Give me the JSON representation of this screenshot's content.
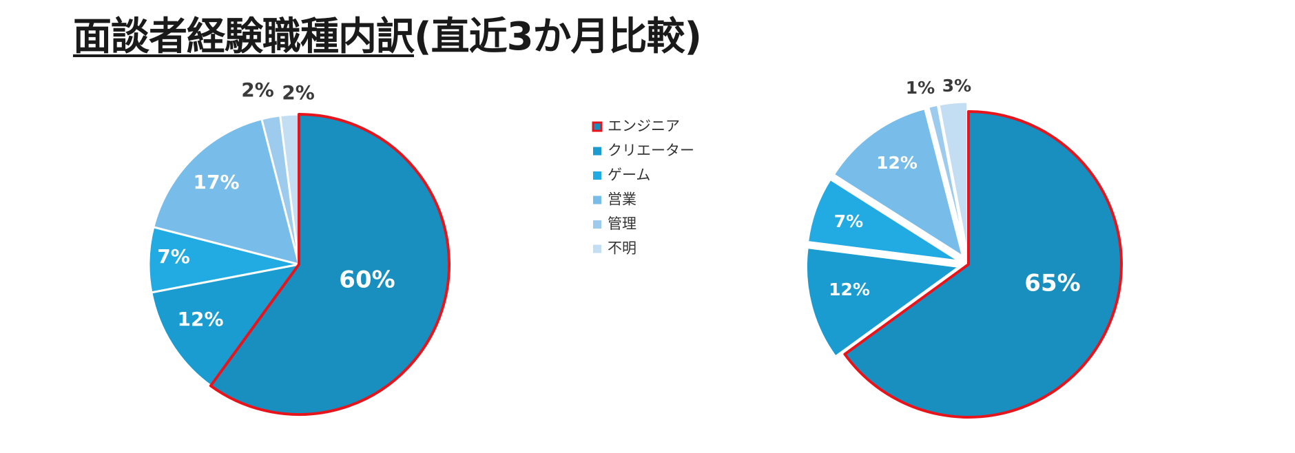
{
  "title": {
    "main": "面談者経験職種内訳",
    "suffix": "(直近3か月比較)"
  },
  "legend": [
    {
      "label": "エンジニア",
      "color": "#188fbf",
      "highlighted": true
    },
    {
      "label": "クリエーター",
      "color": "#1a9cd0"
    },
    {
      "label": "ゲーム",
      "color": "#21abe2"
    },
    {
      "label": "営業",
      "color": "#78bde9"
    },
    {
      "label": "管理",
      "color": "#9ccbee"
    },
    {
      "label": "不明",
      "color": "#c3ddf3"
    }
  ],
  "chart_data": [
    {
      "type": "pie",
      "categories": [
        "エンジニア",
        "クリエーター",
        "ゲーム",
        "営業",
        "管理",
        "不明"
      ],
      "values": [
        60,
        12,
        7,
        17,
        2,
        2
      ],
      "labels": [
        "60%",
        "12%",
        "7%",
        "17%",
        "2%",
        "2%"
      ],
      "highlight": "エンジニア",
      "start": "12 o'clock",
      "direction": "clockwise"
    },
    {
      "type": "pie",
      "categories": [
        "エンジニア",
        "クリエーター",
        "ゲーム",
        "営業",
        "管理",
        "不明"
      ],
      "values": [
        65,
        12,
        7,
        12,
        1,
        3
      ],
      "labels": [
        "65%",
        "12%",
        "7%",
        "12%",
        "1%",
        "3%"
      ],
      "highlight": "エンジニア",
      "start": "12 o'clock",
      "direction": "clockwise"
    }
  ]
}
